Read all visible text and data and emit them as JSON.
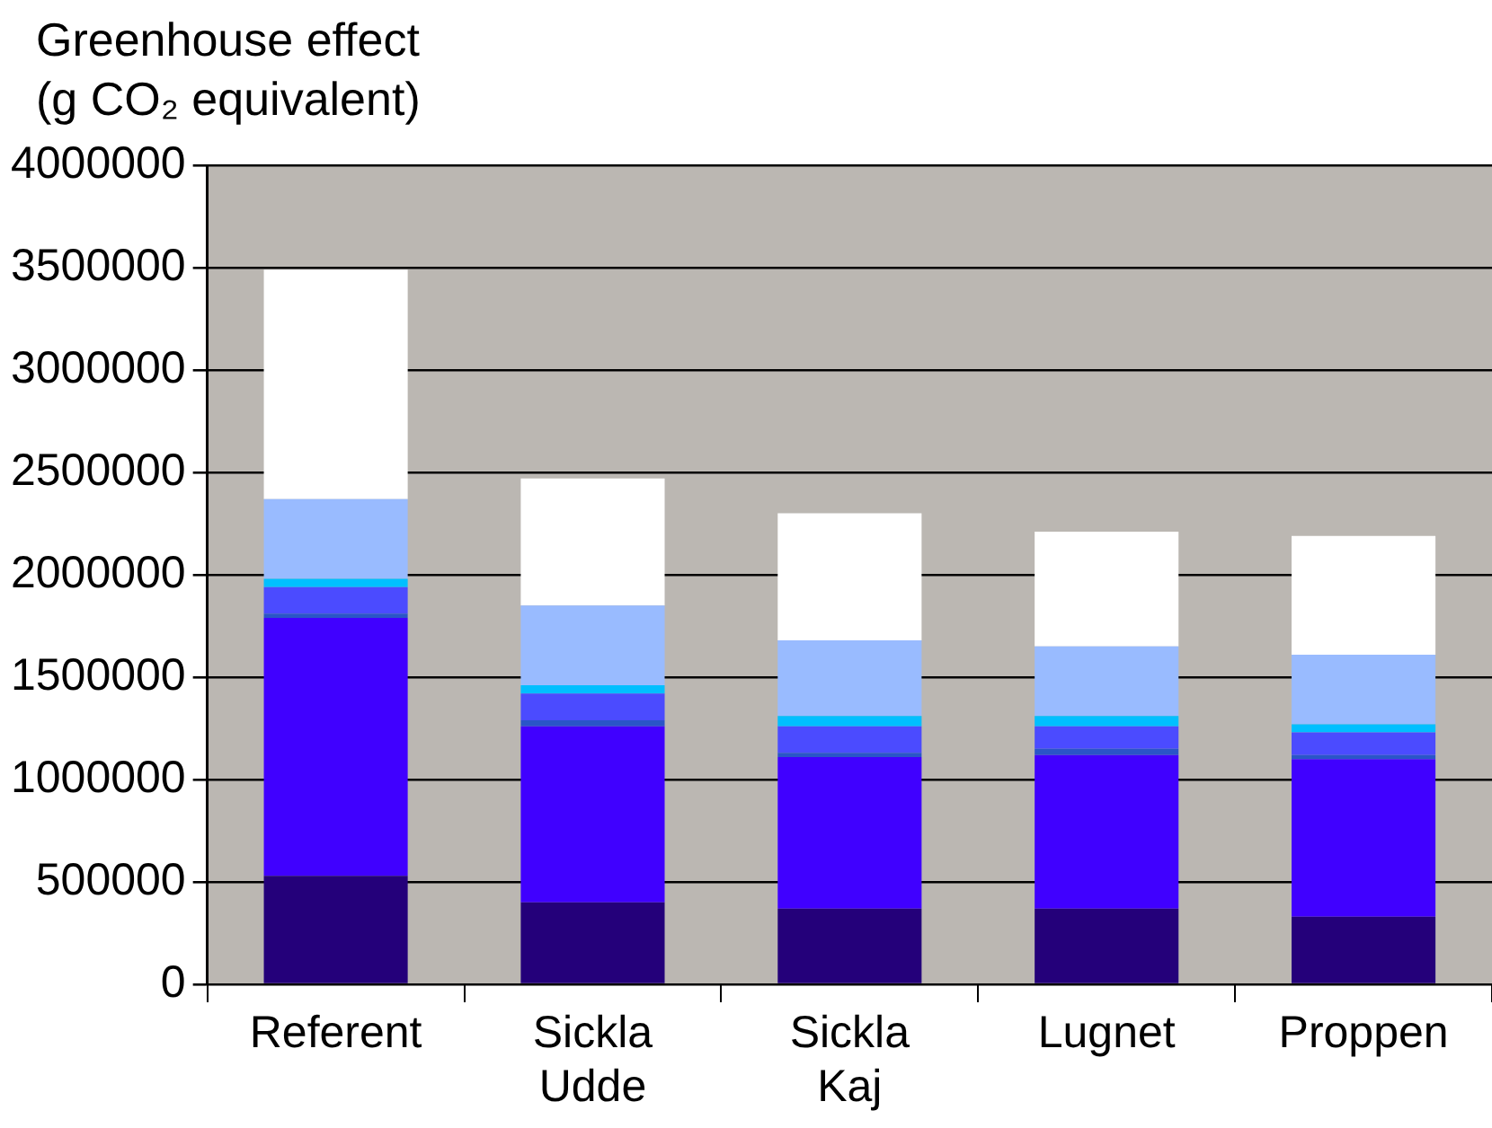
{
  "chart_data": {
    "type": "bar",
    "ylabel": "Greenhouse effect (g CO₂ equivalent)",
    "categories": [
      "Referent",
      "Sickla Udde",
      "Sickla Kaj",
      "Lugnet",
      "Proppen"
    ],
    "stacked": true,
    "series": [
      {
        "color": "#24007a",
        "values": [
          530000,
          400000,
          370000,
          370000,
          330000
        ]
      },
      {
        "color": "#4000ff",
        "values": [
          1260000,
          860000,
          740000,
          750000,
          770000
        ]
      },
      {
        "color": "#2a55c8",
        "values": [
          20000,
          30000,
          20000,
          30000,
          20000
        ]
      },
      {
        "color": "#4b4bff",
        "values": [
          130000,
          130000,
          130000,
          110000,
          110000
        ]
      },
      {
        "color": "#00bfff",
        "values": [
          40000,
          40000,
          50000,
          50000,
          40000
        ]
      },
      {
        "color": "#99bbff",
        "values": [
          390000,
          390000,
          370000,
          340000,
          340000
        ]
      },
      {
        "color": "#ffffff",
        "values": [
          1120000,
          620000,
          620000,
          560000,
          580000
        ]
      }
    ],
    "ylim": [
      0,
      4000000
    ],
    "yticks": [
      0,
      500000,
      1000000,
      1500000,
      2000000,
      2500000,
      3000000,
      3500000,
      4000000
    ],
    "grid": "y",
    "legend": false
  }
}
